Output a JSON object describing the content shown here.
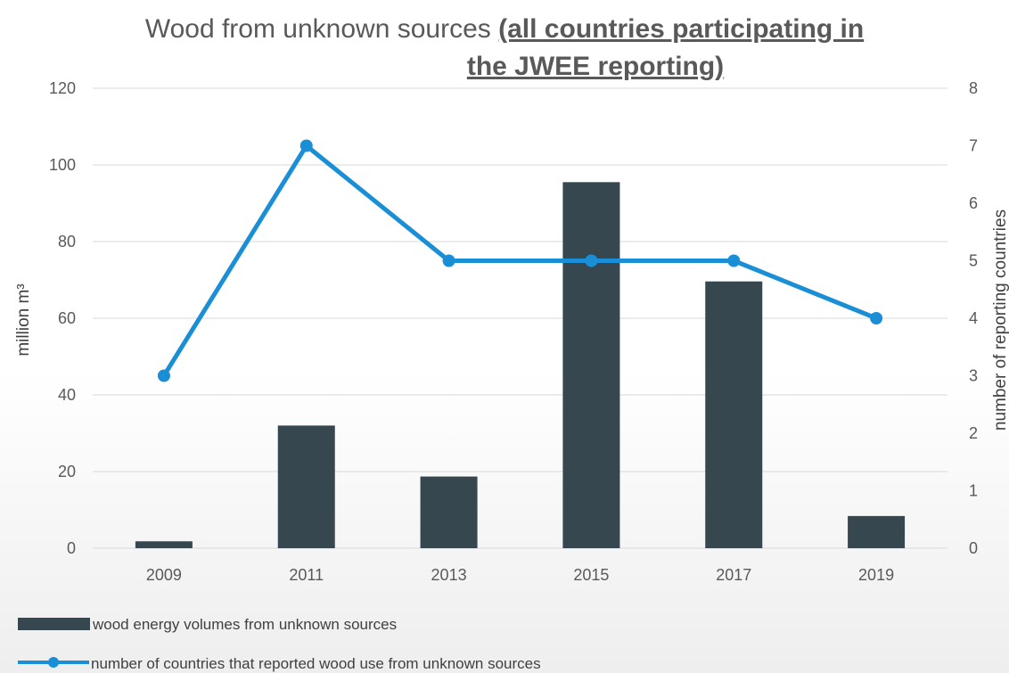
{
  "chart_data": {
    "type": "bar",
    "title_plain": "Wood from unknown sources ",
    "title_bold_line1": "(all countries participating in",
    "title_bold_line2": "the JWEE reporting)",
    "categories": [
      "2009",
      "2011",
      "2013",
      "2015",
      "2017",
      "2019"
    ],
    "series": [
      {
        "name": "wood energy volumes from unknown sources",
        "type": "bar",
        "axis": "left",
        "color": "#37474f",
        "values": [
          1.8,
          32,
          18.7,
          95.5,
          69.6,
          8.4
        ]
      },
      {
        "name": "number of countries that reported wood use from unknown sources",
        "type": "line",
        "axis": "right",
        "color": "#1b8fd6",
        "values": [
          3,
          7,
          5,
          5,
          5,
          4
        ]
      }
    ],
    "ylabel_left": "million m³",
    "ylabel_right": "number of reporting countries",
    "ylim_left": [
      0,
      120
    ],
    "yticks_left": [
      "0",
      "20",
      "40",
      "60",
      "80",
      "100",
      "120"
    ],
    "ylim_right": [
      0,
      8
    ],
    "yticks_right": [
      "0",
      "1",
      "2",
      "3",
      "4",
      "5",
      "6",
      "7",
      "8"
    ],
    "grid": true,
    "legend_position": "bottom-left"
  }
}
